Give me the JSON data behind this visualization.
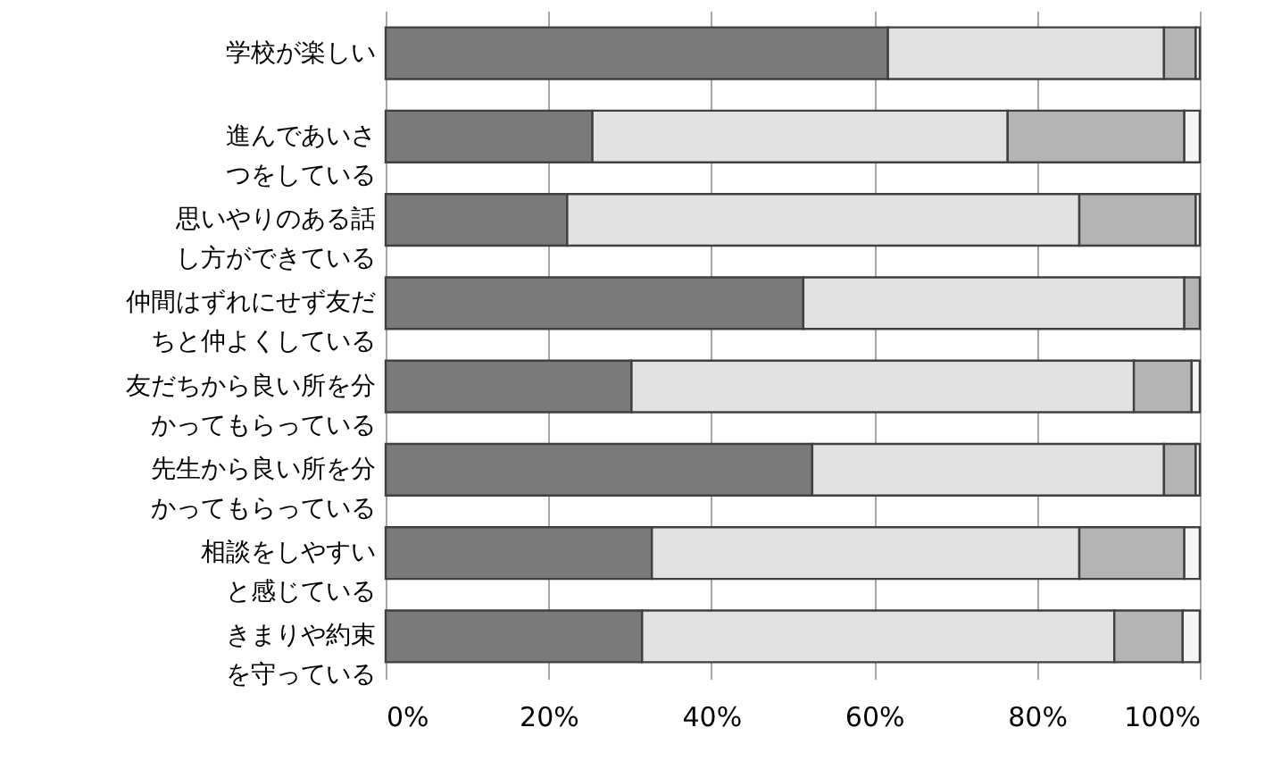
{
  "chart_data": {
    "type": "bar",
    "orientation": "horizontal",
    "stacked": true,
    "categories": [
      "学校が楽しい",
      "進んであいさつをしている",
      "思いやりのある話し方ができている",
      "仲間はずれにせず友だちと仲よくしている",
      "友だちから良い所を分かってもらっている",
      "先生から良い所を分かってもらっている",
      "相談をしやすいと感じている",
      "きまりや約束を守っている"
    ],
    "series": [
      {
        "color": "#7a7a7a",
        "values": [
          61.7,
          25.4,
          22.3,
          51.3,
          30.2,
          52.4,
          32.7,
          31.5
        ]
      },
      {
        "color": "#e2e2e2",
        "values": [
          33.9,
          51.0,
          62.9,
          46.8,
          61.7,
          43.2,
          52.5,
          58.0
        ]
      },
      {
        "color": "#b4b4b4",
        "values": [
          3.9,
          21.7,
          14.3,
          1.9,
          7.1,
          3.9,
          12.9,
          8.4
        ]
      },
      {
        "color": "#f5f5f5",
        "values": [
          0.5,
          1.9,
          0.5,
          null,
          1.0,
          0.5,
          1.9,
          2.1
        ]
      }
    ],
    "xlim": [
      0,
      100
    ],
    "xticks": [
      {
        "value": 0,
        "label": "0%"
      },
      {
        "value": 20,
        "label": "20%"
      },
      {
        "value": 40,
        "label": "40%"
      },
      {
        "value": 60,
        "label": "60%"
      },
      {
        "value": 80,
        "label": "80%"
      },
      {
        "value": 100,
        "label": "100%"
      }
    ],
    "grid": "x"
  }
}
